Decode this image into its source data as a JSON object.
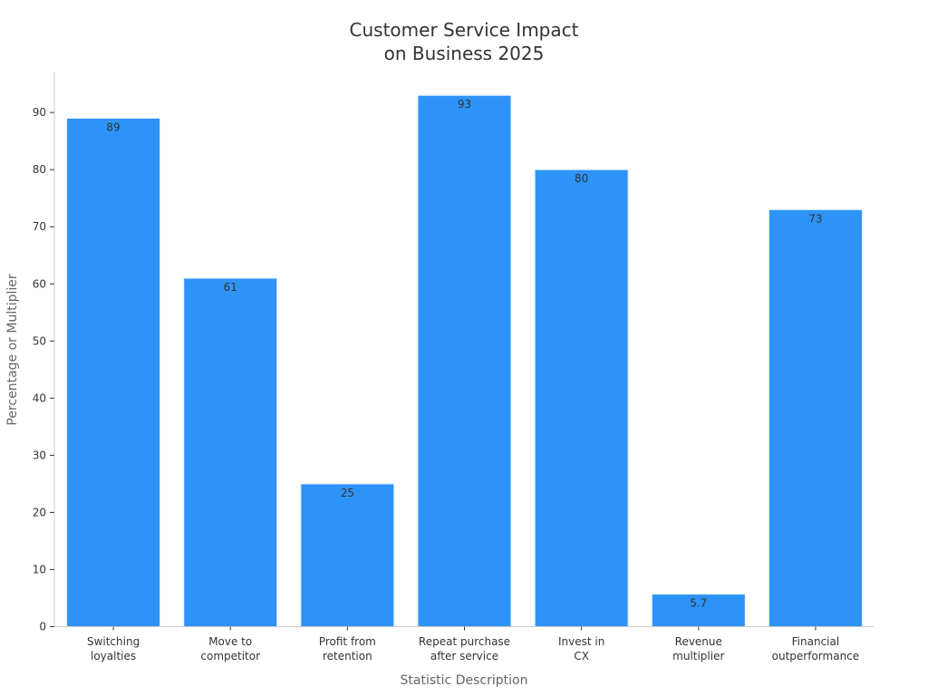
{
  "chart_data": {
    "type": "bar",
    "title": "Customer Service Impact\non Business 2025",
    "xlabel": "Statistic Description",
    "ylabel": "Percentage or Multiplier",
    "categories": [
      "Switching\nloyalties",
      "Move to\ncompetitor",
      "Profit from\nretention",
      "Repeat purchase\nafter service",
      "Invest in\nCX",
      "Revenue\nmultiplier",
      "Financial\noutperformance"
    ],
    "values": [
      89,
      61,
      25,
      93,
      80,
      5.7,
      73
    ],
    "ylim": [
      0,
      97
    ],
    "yticks": [
      0,
      10,
      20,
      30,
      40,
      50,
      60,
      70,
      80,
      90
    ],
    "bar_color": "#2e93f6",
    "grid": false,
    "legend": "none"
  }
}
